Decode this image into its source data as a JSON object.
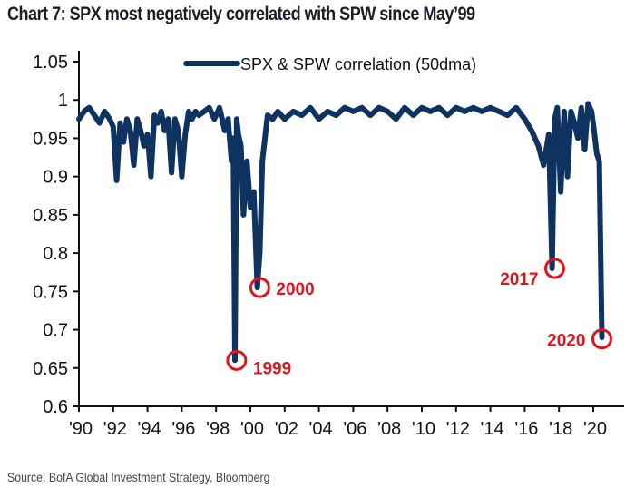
{
  "title": "Chart 7: SPX most negatively correlated with SPW since May’99",
  "source": "Source: BofA Global Investment Strategy, Bloomberg",
  "chart_data": {
    "type": "line",
    "title": "Chart 7: SPX most negatively correlated with SPW since May’99",
    "xlabel": "",
    "ylabel": "",
    "xlim": [
      1990,
      2021.8
    ],
    "ylim": [
      0.6,
      1.05
    ],
    "grid": false,
    "legend_position": "top-center",
    "y_ticks": [
      1.05,
      1,
      0.95,
      0.9,
      0.85,
      0.8,
      0.75,
      0.7,
      0.65,
      0.6
    ],
    "y_tick_labels": [
      "1.05",
      "1",
      "0.95",
      "0.9",
      "0.85",
      "0.8",
      "0.75",
      "0.7",
      "0.65",
      "0.6"
    ],
    "x_ticks": [
      1990,
      1992,
      1994,
      1996,
      1998,
      2000,
      2002,
      2004,
      2006,
      2008,
      2010,
      2012,
      2014,
      2016,
      2018,
      2020
    ],
    "x_tick_labels": [
      "'90",
      "'92",
      "'94",
      "'96",
      "'98",
      "'00",
      "'02",
      "'04",
      "'06",
      "'08",
      "'10",
      "'12",
      "'14",
      "'16",
      "'18",
      "'20"
    ],
    "series": [
      {
        "name": "SPX & SPW correlation (50dma)",
        "color": "#0f3361",
        "x": [
          1990.0,
          1990.3,
          1990.6,
          1990.9,
          1991.2,
          1991.5,
          1991.8,
          1992.0,
          1992.2,
          1992.4,
          1992.6,
          1992.8,
          1993.0,
          1993.2,
          1993.4,
          1993.6,
          1993.8,
          1994.0,
          1994.2,
          1994.4,
          1994.6,
          1994.8,
          1995.0,
          1995.2,
          1995.4,
          1995.6,
          1995.8,
          1996.0,
          1996.2,
          1996.4,
          1996.6,
          1996.8,
          1997.0,
          1997.3,
          1997.6,
          1997.9,
          1998.2,
          1998.5,
          1998.7,
          1998.9,
          1999.0,
          1999.1,
          1999.2,
          1999.3,
          1999.45,
          1999.6,
          1999.8,
          2000.0,
          2000.2,
          2000.4,
          2000.55,
          2000.7,
          2000.85,
          2001.0,
          2001.3,
          2001.6,
          2002.0,
          2002.5,
          2003.0,
          2003.5,
          2004.0,
          2004.5,
          2005.0,
          2005.5,
          2006.0,
          2006.5,
          2007.0,
          2007.5,
          2008.0,
          2008.5,
          2009.0,
          2009.5,
          2010.0,
          2010.5,
          2011.0,
          2011.5,
          2012.0,
          2012.5,
          2013.0,
          2013.5,
          2014.0,
          2014.5,
          2015.0,
          2015.5,
          2016.0,
          2016.4,
          2016.8,
          2017.1,
          2017.4,
          2017.6,
          2017.75,
          2017.9,
          2018.1,
          2018.3,
          2018.5,
          2018.7,
          2018.9,
          2019.1,
          2019.3,
          2019.5,
          2019.7,
          2019.9,
          2020.05,
          2020.2,
          2020.35,
          2020.5
        ],
        "values": [
          0.975,
          0.985,
          0.99,
          0.98,
          0.97,
          0.985,
          0.975,
          0.965,
          0.895,
          0.97,
          0.945,
          0.975,
          0.96,
          0.915,
          0.975,
          0.96,
          0.94,
          0.955,
          0.9,
          0.98,
          0.97,
          0.985,
          0.96,
          0.975,
          0.905,
          0.975,
          0.96,
          0.9,
          0.955,
          0.985,
          0.975,
          0.985,
          0.98,
          0.985,
          0.99,
          0.975,
          0.99,
          0.96,
          0.975,
          0.92,
          0.95,
          0.66,
          0.975,
          0.955,
          0.94,
          0.85,
          0.92,
          0.86,
          0.88,
          0.755,
          0.8,
          0.92,
          0.95,
          0.98,
          0.975,
          0.985,
          0.975,
          0.985,
          0.98,
          0.99,
          0.975,
          0.985,
          0.98,
          0.99,
          0.985,
          0.99,
          0.98,
          0.99,
          0.985,
          0.975,
          0.99,
          0.98,
          0.99,
          0.985,
          0.99,
          0.98,
          0.99,
          0.985,
          0.99,
          0.985,
          0.99,
          0.985,
          0.98,
          0.99,
          0.975,
          0.96,
          0.94,
          0.915,
          0.955,
          0.78,
          0.975,
          0.99,
          0.88,
          0.985,
          0.9,
          0.985,
          0.97,
          0.95,
          0.99,
          0.935,
          0.995,
          0.985,
          0.96,
          0.93,
          0.92,
          0.69
        ]
      }
    ],
    "annotations": [
      {
        "label": "1999",
        "x": 1999.2,
        "y": 0.66
      },
      {
        "label": "2000",
        "x": 2000.55,
        "y": 0.755
      },
      {
        "label": "2017",
        "x": 2017.75,
        "y": 0.78
      },
      {
        "label": "2020",
        "x": 2020.5,
        "y": 0.688
      }
    ]
  }
}
